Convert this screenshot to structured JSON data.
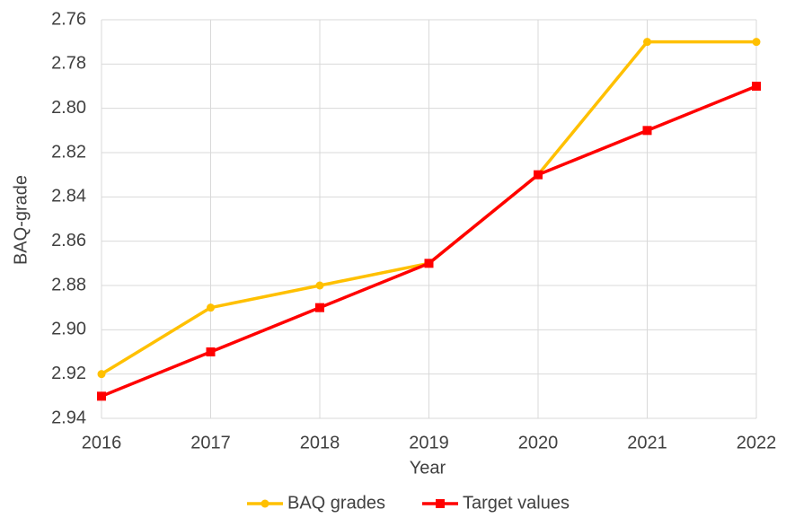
{
  "chart_data": {
    "type": "line",
    "x_label": "Year",
    "y_label": "BAQ-grade",
    "x": [
      2016,
      2017,
      2018,
      2019,
      2020,
      2021,
      2022
    ],
    "series": [
      {
        "name": "BAQ grades",
        "color": "#FFC000",
        "marker": "circle",
        "values": [
          2.92,
          2.89,
          2.88,
          2.87,
          2.83,
          2.77,
          2.77
        ]
      },
      {
        "name": "Target values",
        "color": "#FF0000",
        "marker": "square",
        "values": [
          2.93,
          2.91,
          2.89,
          2.87,
          2.83,
          2.81,
          2.79
        ]
      }
    ],
    "xlim": [
      2016,
      2022
    ],
    "xticks": [
      2016,
      2017,
      2018,
      2019,
      2020,
      2021,
      2022
    ],
    "ylim": [
      2.94,
      2.76
    ],
    "yticks": [
      2.76,
      2.78,
      {
        "value": 2.8,
        "label": "2.80"
      },
      2.82,
      2.84,
      2.86,
      2.88,
      {
        "value": 2.9,
        "label": "2.90"
      },
      2.92,
      2.94
    ],
    "grid": true,
    "legend": "bottom"
  }
}
